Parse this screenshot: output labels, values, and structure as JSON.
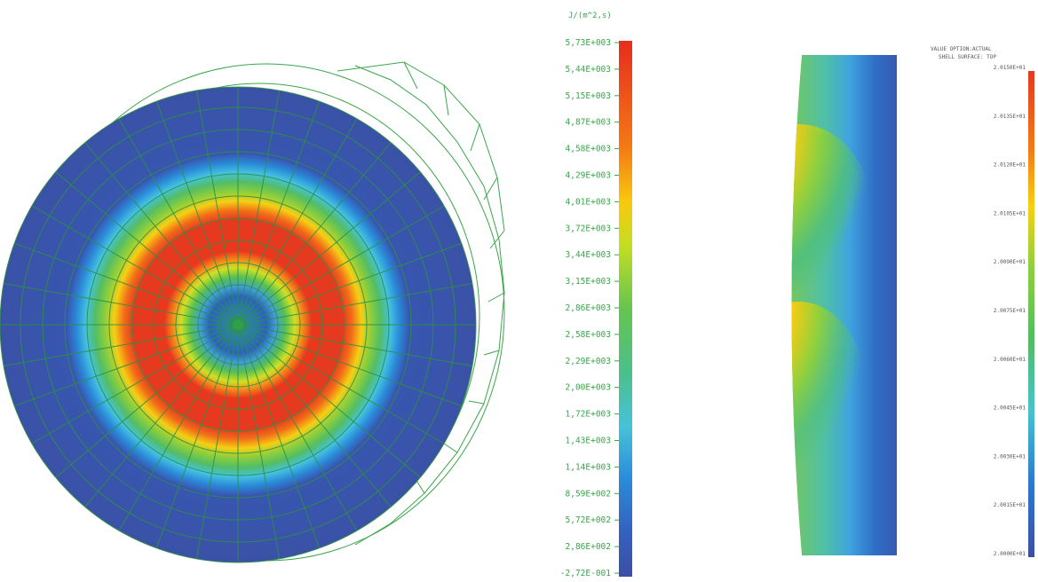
{
  "left_scale": {
    "unit": "J/(m^2,s)",
    "ticks": [
      "5,73E+003",
      "5,44E+003",
      "5,15E+003",
      "4,87E+003",
      "4,58E+003",
      "4,29E+003",
      "4,01E+003",
      "3,72E+003",
      "3,44E+003",
      "3,15E+003",
      "2,86E+003",
      "2,58E+003",
      "2,29E+003",
      "2,00E+003",
      "1,72E+003",
      "1,43E+003",
      "1,14E+003",
      "8,59E+002",
      "5,72E+002",
      "2,86E+002",
      "-2,72E-001"
    ],
    "colors": [
      "#e03020",
      "#e8401c",
      "#ef5a18",
      "#f47a14",
      "#f89a10",
      "#fbbb0c",
      "#f4dc10",
      "#cde020",
      "#9ed43a",
      "#74c94a",
      "#5ec25a",
      "#52bd62",
      "#4dbd8a",
      "#4cc3b2",
      "#43bfe0",
      "#2fa8e4",
      "#2a88d8",
      "#2e6fc9",
      "#3459b8",
      "#3a4fa8",
      "#3d4ea0"
    ]
  },
  "right_scale": {
    "title_line1": "VALUE OPTION:ACTUAL",
    "title_line2": "SHELL SURFACE: TOP",
    "ticks": [
      "2.0150E+01",
      "2.0135E+01",
      "2.0120E+01",
      "2.0105E+01",
      "2.0090E+01",
      "2.0075E+01",
      "2.0060E+01",
      "2.0045E+01",
      "2.0030E+01",
      "2.0015E+01",
      "2.0000E+01"
    ],
    "colors": [
      "#e03a20",
      "#f07a18",
      "#f7c612",
      "#cfe024",
      "#7ecb46",
      "#52bc5c",
      "#4cbf9a",
      "#46c2d0",
      "#3ba0e0",
      "#3270c8",
      "#3a4fa8"
    ]
  },
  "mesh_color": "#3aa64a"
}
